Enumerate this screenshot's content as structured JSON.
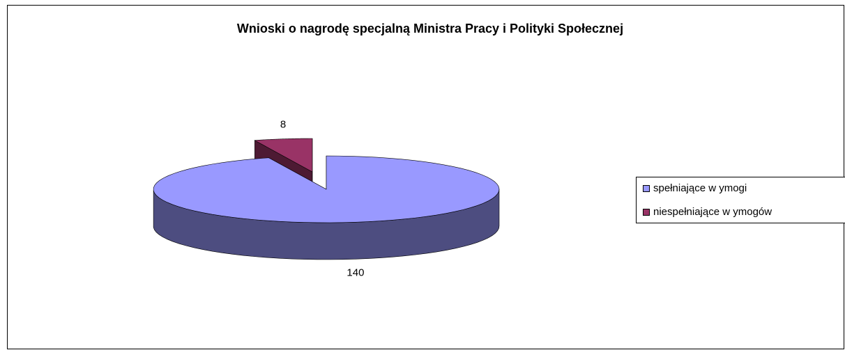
{
  "chart_data": {
    "type": "pie3d",
    "title": "Wnioski o nagrodę specjalną Ministra Pracy i Polityki Społecznej",
    "categories": [
      "spełniające w ymogi",
      "niespełniające w ymogów"
    ],
    "values": [
      140,
      8
    ],
    "colors": [
      "#9999ff",
      "#993366"
    ],
    "side_colors": [
      "#4d4d80",
      "#4d1a33"
    ],
    "legend": "right"
  }
}
